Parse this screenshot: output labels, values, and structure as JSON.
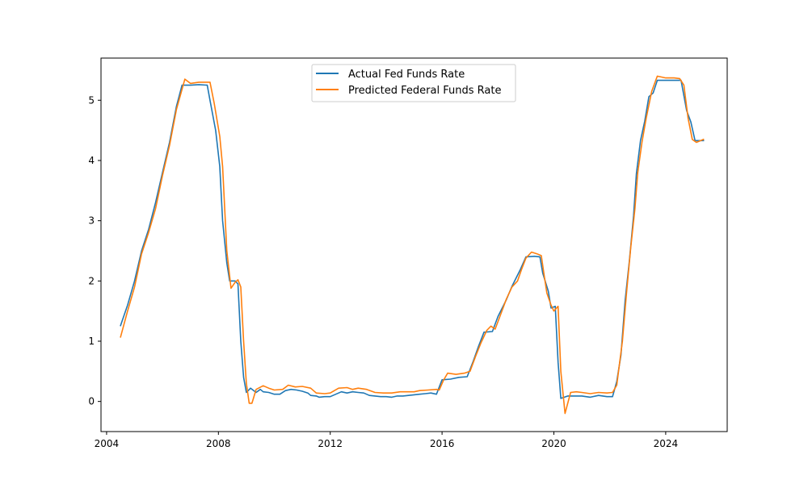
{
  "chart_data": {
    "type": "line",
    "title": "",
    "xlabel": "",
    "ylabel": "",
    "xlim": [
      2003.8,
      2026.2
    ],
    "ylim": [
      -0.5,
      5.7
    ],
    "x_ticks": [
      {
        "value": 2004,
        "label": "2004"
      },
      {
        "value": 2008,
        "label": "2008"
      },
      {
        "value": 2012,
        "label": "2012"
      },
      {
        "value": 2016,
        "label": "2016"
      },
      {
        "value": 2020,
        "label": "2020"
      },
      {
        "value": 2024,
        "label": "2024"
      }
    ],
    "y_ticks": [
      {
        "value": 0,
        "label": "0"
      },
      {
        "value": 1,
        "label": "1"
      },
      {
        "value": 2,
        "label": "2"
      },
      {
        "value": 3,
        "label": "3"
      },
      {
        "value": 4,
        "label": "4"
      },
      {
        "value": 5,
        "label": "5"
      }
    ],
    "legend_position": "top-center",
    "grid": false,
    "series": [
      {
        "name": "Actual Fed Funds Rate",
        "color": "#1f77b4",
        "points": [
          [
            2004.5,
            1.26
          ],
          [
            2004.75,
            1.6
          ],
          [
            2005.0,
            2.0
          ],
          [
            2005.25,
            2.5
          ],
          [
            2005.5,
            2.85
          ],
          [
            2005.75,
            3.3
          ],
          [
            2006.0,
            3.8
          ],
          [
            2006.25,
            4.3
          ],
          [
            2006.5,
            4.9
          ],
          [
            2006.7,
            5.25
          ],
          [
            2007.0,
            5.25
          ],
          [
            2007.3,
            5.26
          ],
          [
            2007.6,
            5.25
          ],
          [
            2007.7,
            5.0
          ],
          [
            2007.9,
            4.5
          ],
          [
            2008.05,
            3.9
          ],
          [
            2008.15,
            3.0
          ],
          [
            2008.3,
            2.3
          ],
          [
            2008.4,
            2.0
          ],
          [
            2008.6,
            2.0
          ],
          [
            2008.7,
            1.95
          ],
          [
            2008.8,
            1.0
          ],
          [
            2008.9,
            0.4
          ],
          [
            2009.0,
            0.15
          ],
          [
            2009.15,
            0.22
          ],
          [
            2009.35,
            0.15
          ],
          [
            2009.5,
            0.2
          ],
          [
            2009.6,
            0.16
          ],
          [
            2009.8,
            0.15
          ],
          [
            2010.0,
            0.12
          ],
          [
            2010.2,
            0.12
          ],
          [
            2010.4,
            0.18
          ],
          [
            2010.6,
            0.2
          ],
          [
            2010.8,
            0.19
          ],
          [
            2011.0,
            0.17
          ],
          [
            2011.2,
            0.14
          ],
          [
            2011.3,
            0.1
          ],
          [
            2011.5,
            0.09
          ],
          [
            2011.6,
            0.07
          ],
          [
            2011.8,
            0.08
          ],
          [
            2012.0,
            0.08
          ],
          [
            2012.2,
            0.12
          ],
          [
            2012.4,
            0.16
          ],
          [
            2012.6,
            0.14
          ],
          [
            2012.8,
            0.16
          ],
          [
            2013.0,
            0.15
          ],
          [
            2013.2,
            0.14
          ],
          [
            2013.4,
            0.1
          ],
          [
            2013.6,
            0.09
          ],
          [
            2013.8,
            0.08
          ],
          [
            2014.0,
            0.08
          ],
          [
            2014.2,
            0.07
          ],
          [
            2014.4,
            0.09
          ],
          [
            2014.6,
            0.09
          ],
          [
            2014.8,
            0.1
          ],
          [
            2015.0,
            0.11
          ],
          [
            2015.2,
            0.12
          ],
          [
            2015.4,
            0.13
          ],
          [
            2015.6,
            0.14
          ],
          [
            2015.8,
            0.12
          ],
          [
            2016.0,
            0.36
          ],
          [
            2016.3,
            0.37
          ],
          [
            2016.6,
            0.4
          ],
          [
            2016.9,
            0.41
          ],
          [
            2017.1,
            0.65
          ],
          [
            2017.3,
            0.91
          ],
          [
            2017.5,
            1.15
          ],
          [
            2017.8,
            1.16
          ],
          [
            2018.0,
            1.41
          ],
          [
            2018.3,
            1.69
          ],
          [
            2018.5,
            1.91
          ],
          [
            2018.8,
            2.19
          ],
          [
            2019.0,
            2.4
          ],
          [
            2019.3,
            2.41
          ],
          [
            2019.5,
            2.4
          ],
          [
            2019.6,
            2.13
          ],
          [
            2019.8,
            1.83
          ],
          [
            2019.9,
            1.55
          ],
          [
            2020.05,
            1.58
          ],
          [
            2020.15,
            0.65
          ],
          [
            2020.25,
            0.05
          ],
          [
            2020.5,
            0.09
          ],
          [
            2020.8,
            0.09
          ],
          [
            2021.0,
            0.09
          ],
          [
            2021.3,
            0.07
          ],
          [
            2021.6,
            0.1
          ],
          [
            2021.9,
            0.08
          ],
          [
            2022.1,
            0.08
          ],
          [
            2022.25,
            0.33
          ],
          [
            2022.4,
            0.77
          ],
          [
            2022.55,
            1.68
          ],
          [
            2022.7,
            2.33
          ],
          [
            2022.85,
            3.08
          ],
          [
            2022.95,
            3.78
          ],
          [
            2023.1,
            4.33
          ],
          [
            2023.25,
            4.65
          ],
          [
            2023.4,
            5.06
          ],
          [
            2023.55,
            5.12
          ],
          [
            2023.7,
            5.33
          ],
          [
            2024.0,
            5.33
          ],
          [
            2024.3,
            5.33
          ],
          [
            2024.55,
            5.33
          ],
          [
            2024.75,
            4.83
          ],
          [
            2024.9,
            4.64
          ],
          [
            2025.05,
            4.33
          ],
          [
            2025.2,
            4.33
          ],
          [
            2025.35,
            4.33
          ]
        ]
      },
      {
        "name": "Predicted Federal Funds Rate",
        "color": "#ff7f0e",
        "points": [
          [
            2004.5,
            1.07
          ],
          [
            2004.75,
            1.5
          ],
          [
            2005.0,
            1.9
          ],
          [
            2005.25,
            2.45
          ],
          [
            2005.5,
            2.8
          ],
          [
            2005.75,
            3.2
          ],
          [
            2006.0,
            3.75
          ],
          [
            2006.25,
            4.25
          ],
          [
            2006.5,
            4.85
          ],
          [
            2006.8,
            5.35
          ],
          [
            2007.0,
            5.28
          ],
          [
            2007.3,
            5.3
          ],
          [
            2007.7,
            5.3
          ],
          [
            2007.85,
            4.95
          ],
          [
            2008.05,
            4.4
          ],
          [
            2008.15,
            3.9
          ],
          [
            2008.3,
            2.5
          ],
          [
            2008.45,
            1.88
          ],
          [
            2008.6,
            1.98
          ],
          [
            2008.7,
            2.02
          ],
          [
            2008.8,
            1.9
          ],
          [
            2008.9,
            1.0
          ],
          [
            2009.0,
            0.3
          ],
          [
            2009.1,
            -0.03
          ],
          [
            2009.2,
            -0.03
          ],
          [
            2009.35,
            0.2
          ],
          [
            2009.6,
            0.26
          ],
          [
            2009.8,
            0.22
          ],
          [
            2010.0,
            0.19
          ],
          [
            2010.3,
            0.2
          ],
          [
            2010.5,
            0.27
          ],
          [
            2010.75,
            0.24
          ],
          [
            2011.0,
            0.25
          ],
          [
            2011.3,
            0.22
          ],
          [
            2011.5,
            0.14
          ],
          [
            2011.8,
            0.13
          ],
          [
            2012.0,
            0.14
          ],
          [
            2012.3,
            0.22
          ],
          [
            2012.6,
            0.23
          ],
          [
            2012.8,
            0.2
          ],
          [
            2013.0,
            0.22
          ],
          [
            2013.3,
            0.2
          ],
          [
            2013.6,
            0.15
          ],
          [
            2013.9,
            0.14
          ],
          [
            2014.2,
            0.14
          ],
          [
            2014.5,
            0.16
          ],
          [
            2014.8,
            0.16
          ],
          [
            2015.0,
            0.16
          ],
          [
            2015.2,
            0.18
          ],
          [
            2015.5,
            0.19
          ],
          [
            2015.8,
            0.2
          ],
          [
            2015.9,
            0.19
          ],
          [
            2016.05,
            0.35
          ],
          [
            2016.2,
            0.47
          ],
          [
            2016.5,
            0.45
          ],
          [
            2016.8,
            0.47
          ],
          [
            2017.0,
            0.5
          ],
          [
            2017.2,
            0.75
          ],
          [
            2017.4,
            0.98
          ],
          [
            2017.6,
            1.18
          ],
          [
            2017.75,
            1.25
          ],
          [
            2017.9,
            1.2
          ],
          [
            2018.1,
            1.45
          ],
          [
            2018.3,
            1.7
          ],
          [
            2018.5,
            1.9
          ],
          [
            2018.7,
            2.0
          ],
          [
            2018.85,
            2.2
          ],
          [
            2019.0,
            2.38
          ],
          [
            2019.2,
            2.48
          ],
          [
            2019.4,
            2.45
          ],
          [
            2019.55,
            2.42
          ],
          [
            2019.65,
            2.1
          ],
          [
            2019.75,
            1.8
          ],
          [
            2019.9,
            1.6
          ],
          [
            2020.0,
            1.5
          ],
          [
            2020.15,
            1.58
          ],
          [
            2020.25,
            0.5
          ],
          [
            2020.4,
            -0.2
          ],
          [
            2020.6,
            0.15
          ],
          [
            2020.8,
            0.16
          ],
          [
            2021.0,
            0.15
          ],
          [
            2021.3,
            0.13
          ],
          [
            2021.6,
            0.15
          ],
          [
            2021.9,
            0.14
          ],
          [
            2022.1,
            0.15
          ],
          [
            2022.25,
            0.27
          ],
          [
            2022.45,
            1.0
          ],
          [
            2022.6,
            1.8
          ],
          [
            2022.75,
            2.55
          ],
          [
            2022.9,
            3.2
          ],
          [
            2023.0,
            3.8
          ],
          [
            2023.15,
            4.3
          ],
          [
            2023.3,
            4.7
          ],
          [
            2023.5,
            5.15
          ],
          [
            2023.7,
            5.4
          ],
          [
            2024.0,
            5.37
          ],
          [
            2024.3,
            5.37
          ],
          [
            2024.5,
            5.36
          ],
          [
            2024.65,
            5.25
          ],
          [
            2024.8,
            4.7
          ],
          [
            2024.95,
            4.35
          ],
          [
            2025.1,
            4.3
          ],
          [
            2025.35,
            4.35
          ]
        ]
      }
    ]
  }
}
